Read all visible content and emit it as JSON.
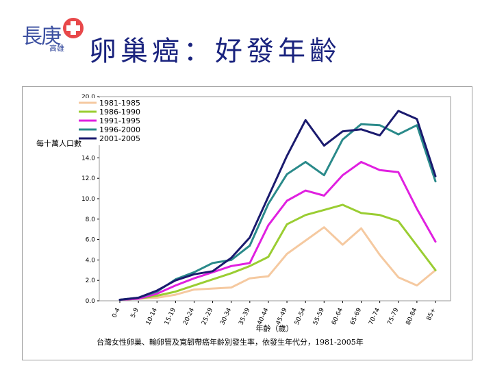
{
  "title": "卵巢癌：好發年齡",
  "logo": {
    "name": "長庚",
    "sub": "高雄"
  },
  "colors": {
    "title": "#1a237e",
    "series": [
      "#f5c9a0",
      "#9acd32",
      "#e020e0",
      "#2a8a8a",
      "#1a1a6e"
    ]
  },
  "chart_data": {
    "type": "line",
    "ylabel": "每十萬人口數",
    "xlabel": "年齡（歲）",
    "caption": "台灣女性卵巢、輸卵管及寬韌帶癌年齡別發生率，依發生年代分，1981-2005年",
    "ylim": [
      0,
      20
    ],
    "yticks": [
      "0.0",
      "2.0",
      "4.0",
      "6.0",
      "8.0",
      "10.0",
      "12.0",
      "14.0",
      "16.0",
      "18.0",
      "20.0"
    ],
    "legend_position": "top-left",
    "grid": false,
    "categories": [
      "0-4",
      "5-9",
      "10-14",
      "15-19",
      "20-24",
      "25-29",
      "30-34",
      "35-39",
      "40-44",
      "45-49",
      "50-54",
      "55-59",
      "60-64",
      "65-69",
      "70-74",
      "75-79",
      "80-84",
      "85+"
    ],
    "series": [
      {
        "name": "1981-1985",
        "values": [
          0.1,
          0.2,
          0.3,
          0.6,
          1.1,
          1.2,
          1.3,
          2.2,
          2.4,
          4.6,
          5.9,
          7.2,
          5.5,
          7.1,
          4.5,
          2.3,
          1.5,
          3.0
        ]
      },
      {
        "name": "1986-1990",
        "values": [
          0.1,
          0.2,
          0.5,
          0.9,
          1.5,
          2.1,
          2.7,
          3.4,
          4.3,
          7.5,
          8.4,
          8.9,
          9.4,
          8.6,
          8.4,
          7.8,
          5.4,
          3.0
        ]
      },
      {
        "name": "1991-1995",
        "values": [
          0.1,
          0.2,
          0.7,
          1.5,
          2.2,
          2.8,
          3.4,
          3.7,
          7.4,
          9.8,
          10.8,
          10.3,
          12.3,
          13.6,
          12.8,
          12.6,
          9.0,
          5.8
        ]
      },
      {
        "name": "1996-2000",
        "values": [
          0.1,
          0.3,
          0.9,
          2.1,
          2.8,
          3.7,
          4.0,
          5.4,
          9.5,
          12.4,
          13.6,
          12.3,
          15.8,
          17.3,
          17.2,
          16.3,
          17.2,
          11.7
        ]
      },
      {
        "name": "2001-2005",
        "values": [
          0.1,
          0.3,
          1.0,
          2.0,
          2.6,
          2.9,
          4.2,
          6.2,
          10.2,
          14.2,
          17.7,
          15.2,
          16.6,
          16.8,
          16.2,
          18.6,
          17.8,
          12.2
        ]
      }
    ]
  }
}
